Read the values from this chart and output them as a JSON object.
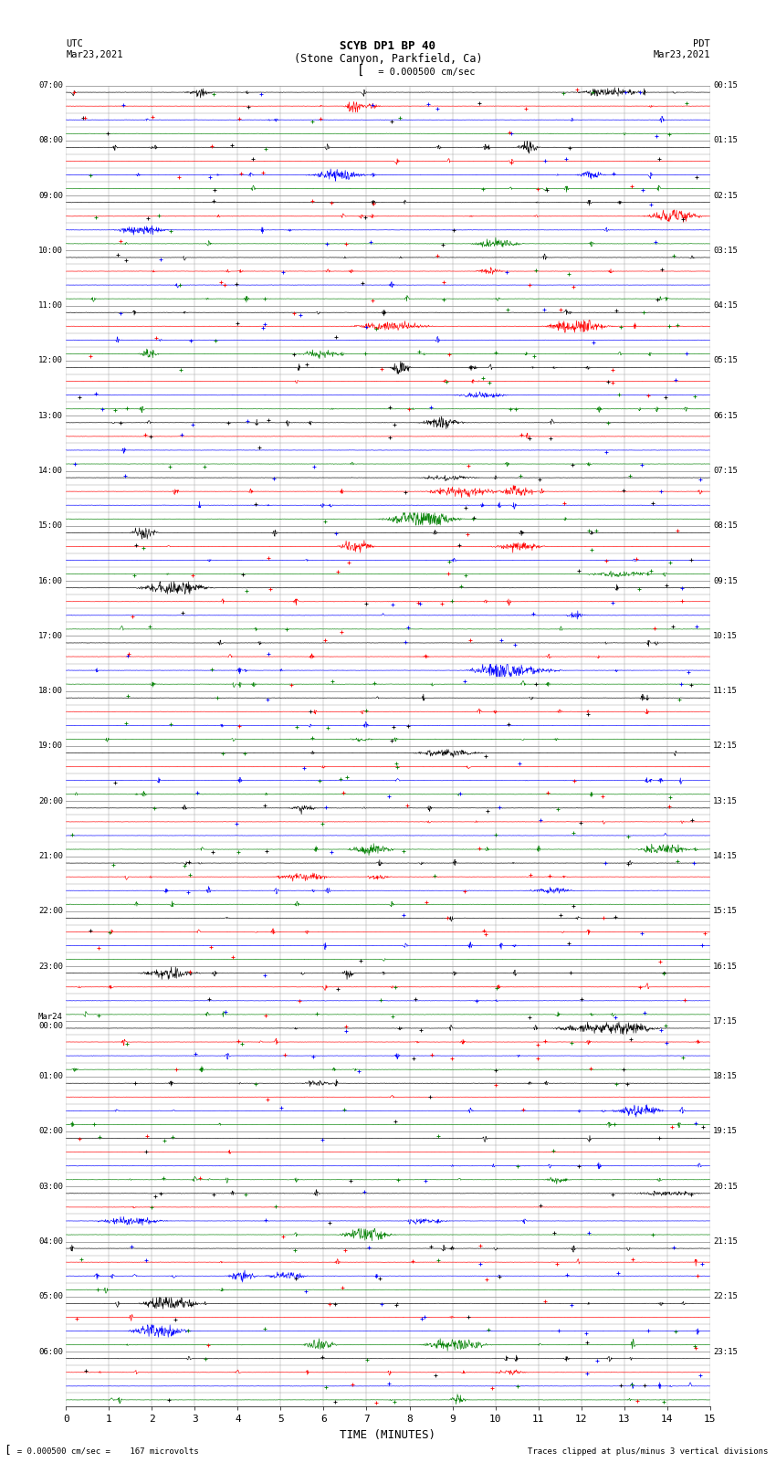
{
  "title_line1": "SCYB DP1 BP 40",
  "title_line2": "(Stone Canyon, Parkfield, Ca)",
  "scale_text": "= 0.000500 cm/sec",
  "xlabel": "TIME (MINUTES)",
  "footer_left": "  = 0.000500 cm/sec =    167 microvolts",
  "footer_right": "Traces clipped at plus/minus 3 vertical divisions",
  "xlim": [
    0,
    15
  ],
  "xticks": [
    0,
    1,
    2,
    3,
    4,
    5,
    6,
    7,
    8,
    9,
    10,
    11,
    12,
    13,
    14,
    15
  ],
  "trace_colors": [
    "black",
    "red",
    "blue",
    "green"
  ],
  "num_rows": 96,
  "utc_labels_major": {
    "0": "07:00",
    "4": "08:00",
    "8": "09:00",
    "12": "10:00",
    "16": "11:00",
    "20": "12:00",
    "24": "13:00",
    "28": "14:00",
    "32": "15:00",
    "36": "16:00",
    "40": "17:00",
    "44": "18:00",
    "48": "19:00",
    "52": "20:00",
    "56": "21:00",
    "60": "22:00",
    "64": "23:00",
    "68": "Mar24\n00:00",
    "72": "01:00",
    "76": "02:00",
    "80": "03:00",
    "84": "04:00",
    "88": "05:00",
    "92": "06:00"
  },
  "pdt_labels_major": {
    "0": "00:15",
    "4": "01:15",
    "8": "02:15",
    "12": "03:15",
    "16": "04:15",
    "20": "05:15",
    "24": "06:15",
    "28": "07:15",
    "32": "08:15",
    "36": "09:15",
    "40": "10:15",
    "44": "11:15",
    "48": "12:15",
    "52": "13:15",
    "56": "14:15",
    "60": "15:15",
    "64": "16:15",
    "68": "17:15",
    "72": "18:15",
    "76": "19:15",
    "80": "20:15",
    "84": "21:15",
    "88": "22:15",
    "92": "23:15"
  },
  "bg_color": "#ffffff",
  "grid_color": "#999999",
  "fig_width": 8.5,
  "fig_height": 16.13
}
